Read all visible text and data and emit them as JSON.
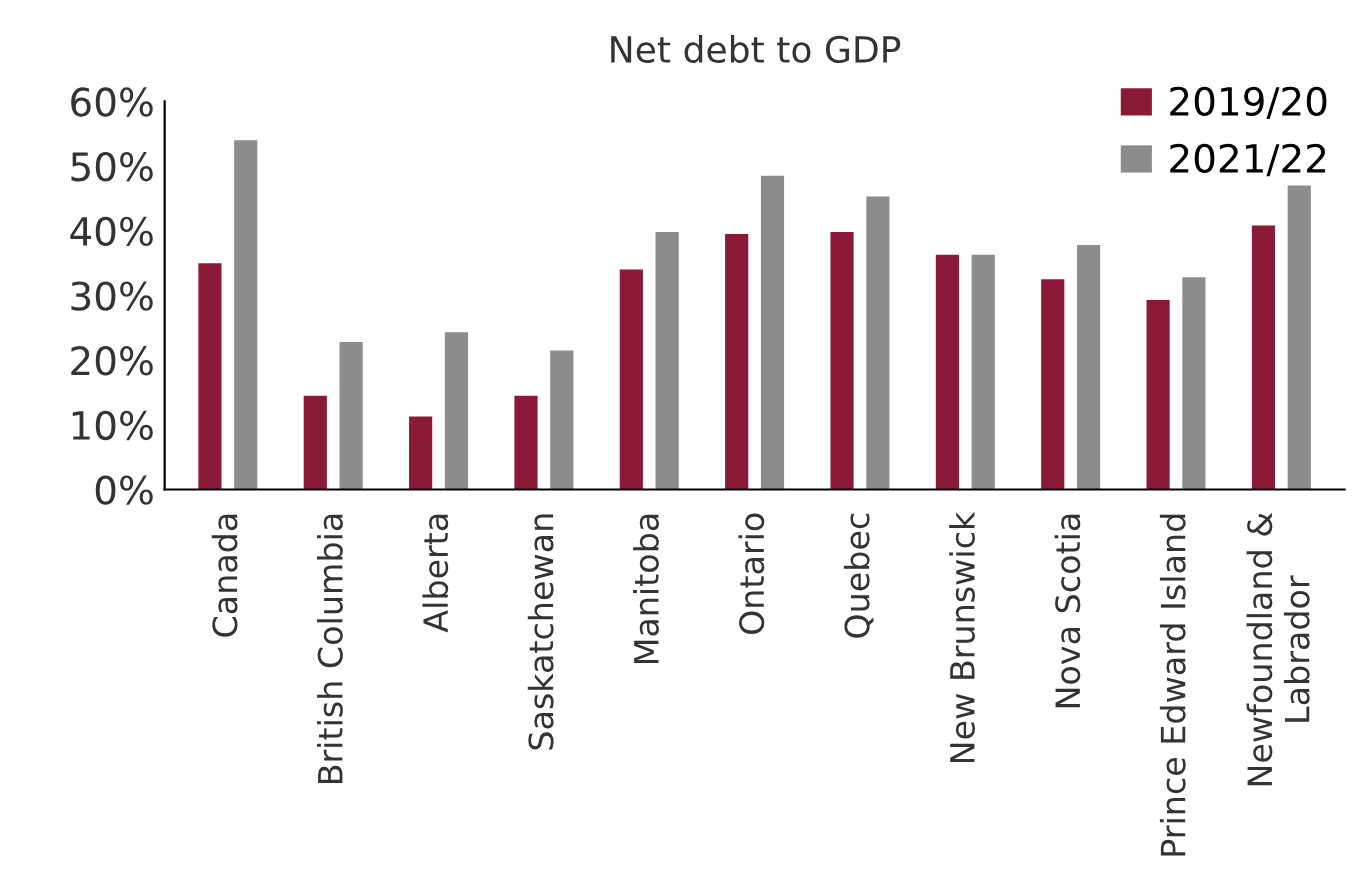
{
  "chart_data": {
    "type": "bar",
    "title": "Net debt to GDP",
    "categories": [
      "Canada",
      "British Columbia",
      "Alberta",
      "Saskatchewan",
      "Manitoba",
      "Ontario",
      "Quebec",
      "New Brunswick",
      "Nova Scotia",
      "Prince Edward Island",
      "Newfoundland &\nLabrador"
    ],
    "series": [
      {
        "name": "2019/20",
        "color": "#8b1a38",
        "values": [
          35,
          14.5,
          11.3,
          14.5,
          34,
          39.5,
          39.8,
          36.3,
          32.5,
          29.3,
          40.8
        ]
      },
      {
        "name": "2021/22",
        "color": "#8c8c8c",
        "values": [
          54,
          22.8,
          24.3,
          21.5,
          39.8,
          48.5,
          45.3,
          36.3,
          37.8,
          32.8,
          47
        ]
      }
    ],
    "ylim": [
      0,
      60
    ],
    "yticks": [
      {
        "value": 0,
        "label": "0%"
      },
      {
        "value": 10,
        "label": "10%"
      },
      {
        "value": 20,
        "label": "20%"
      },
      {
        "value": 30,
        "label": "30%"
      },
      {
        "value": 40,
        "label": "40%"
      },
      {
        "value": 50,
        "label": "50%"
      },
      {
        "value": 60,
        "label": "60%"
      }
    ],
    "grid": false,
    "legend": "top right"
  }
}
